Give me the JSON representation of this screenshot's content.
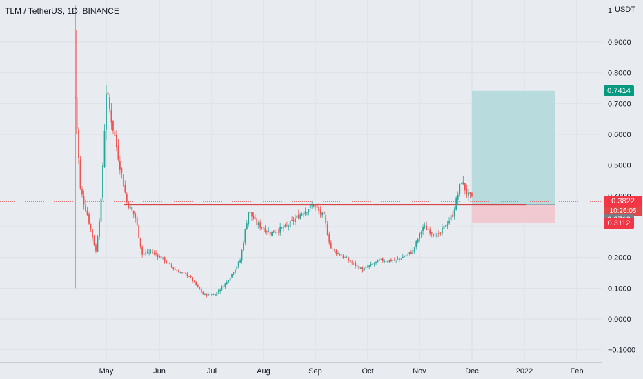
{
  "header": {
    "title": "TLM / TetherUS, 1D, BINANCE"
  },
  "price_axis": {
    "top_tick": "1",
    "unit": "USDT",
    "ticks": [
      "0.9000",
      "0.8000",
      "0.7000",
      "0.6000",
      "0.5000",
      "0.4000",
      "0.3000",
      "0.2000",
      "0.1000",
      "0.0000",
      "−0.1000"
    ],
    "tags": {
      "target": "0.7414",
      "current": "0.3822",
      "countdown": "10:26:05",
      "entry": "0.3713",
      "stop": "0.3112"
    }
  },
  "time_axis": {
    "labels": [
      "May",
      "Jun",
      "Jul",
      "Aug",
      "Sep",
      "Oct",
      "Nov",
      "Dec",
      "2022",
      "Feb"
    ]
  },
  "colors": {
    "up": "#26a69a",
    "down": "#ef5350",
    "target_zone": "#b3d9dc",
    "stop_zone": "#f2c6cd",
    "support_line": "#d32f2f",
    "target_tag": "#089981",
    "current_tag": "#f23645",
    "entry_tag": "#787b86"
  },
  "chart_data": {
    "type": "candlestick",
    "title": "TLM / TetherUS, 1D, BINANCE",
    "ylabel": "USDT",
    "ylim": [
      -0.13,
      1.02
    ],
    "grid": true,
    "support_level": 0.3713,
    "position": {
      "entry": 0.3713,
      "target": 0.7414,
      "stop": 0.3112
    },
    "current_price": 0.3822,
    "series_approx_close": [
      {
        "date": "Apr 13",
        "close": 0.72
      },
      {
        "date": "Apr 16",
        "close": 0.42
      },
      {
        "date": "Apr 20",
        "close": 0.34
      },
      {
        "date": "Apr 25",
        "close": 0.22
      },
      {
        "date": "Apr 28",
        "close": 0.38
      },
      {
        "date": "May 1",
        "close": 0.74
      },
      {
        "date": "May 5",
        "close": 0.62
      },
      {
        "date": "May 9",
        "close": 0.5
      },
      {
        "date": "May 13",
        "close": 0.38
      },
      {
        "date": "May 18",
        "close": 0.33
      },
      {
        "date": "May 22",
        "close": 0.21
      },
      {
        "date": "May 27",
        "close": 0.22
      },
      {
        "date": "Jun 2",
        "close": 0.2
      },
      {
        "date": "Jun 10",
        "close": 0.16
      },
      {
        "date": "Jun 18",
        "close": 0.14
      },
      {
        "date": "Jun 26",
        "close": 0.08
      },
      {
        "date": "Jul 3",
        "close": 0.08
      },
      {
        "date": "Jul 10",
        "close": 0.12
      },
      {
        "date": "Jul 18",
        "close": 0.19
      },
      {
        "date": "Jul 23",
        "close": 0.35
      },
      {
        "date": "Jul 28",
        "close": 0.31
      },
      {
        "date": "Aug 5",
        "close": 0.28
      },
      {
        "date": "Aug 15",
        "close": 0.3
      },
      {
        "date": "Aug 25",
        "close": 0.35
      },
      {
        "date": "Aug 31",
        "close": 0.37
      },
      {
        "date": "Sep 6",
        "close": 0.33
      },
      {
        "date": "Sep 10",
        "close": 0.23
      },
      {
        "date": "Sep 20",
        "close": 0.19
      },
      {
        "date": "Sep 28",
        "close": 0.16
      },
      {
        "date": "Oct 8",
        "close": 0.19
      },
      {
        "date": "Oct 18",
        "close": 0.19
      },
      {
        "date": "Oct 28",
        "close": 0.22
      },
      {
        "date": "Nov 3",
        "close": 0.3
      },
      {
        "date": "Nov 12",
        "close": 0.27
      },
      {
        "date": "Nov 20",
        "close": 0.34
      },
      {
        "date": "Nov 25",
        "close": 0.45
      },
      {
        "date": "Nov 28",
        "close": 0.41
      },
      {
        "date": "Dec 2",
        "close": 0.3822
      }
    ]
  }
}
